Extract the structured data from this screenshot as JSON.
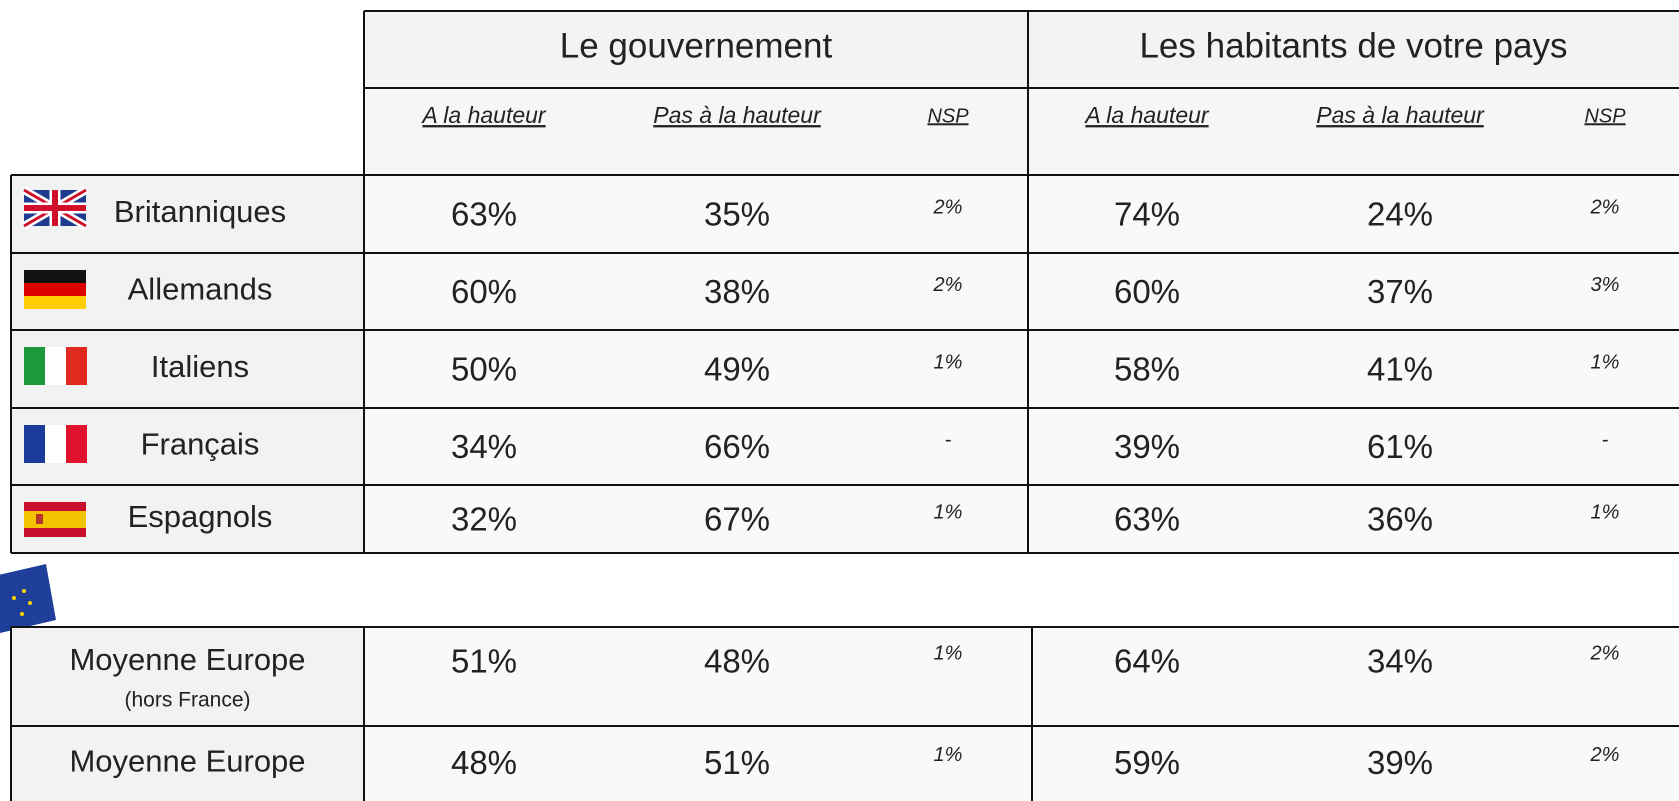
{
  "table": {
    "groups": [
      {
        "title": "Le gouvernement",
        "columns": [
          "A la hauteur",
          "Pas à la hauteur",
          "NSP"
        ]
      },
      {
        "title": "Les habitants de votre pays",
        "columns": [
          "A la hauteur",
          "Pas à la hauteur",
          "NSP"
        ]
      }
    ],
    "rows": [
      {
        "label": "Britanniques",
        "values": [
          "63%",
          "35%",
          "2%",
          "74%",
          "24%",
          "2%"
        ]
      },
      {
        "label": "Allemands",
        "values": [
          "60%",
          "38%",
          "2%",
          "60%",
          "37%",
          "3%"
        ]
      },
      {
        "label": "Italiens",
        "values": [
          "50%",
          "49%",
          "1%",
          "58%",
          "41%",
          "1%"
        ]
      },
      {
        "label": "Français",
        "values": [
          "34%",
          "66%",
          "-",
          "39%",
          "61%",
          "-"
        ]
      },
      {
        "label": "Espagnols",
        "values": [
          "32%",
          "67%",
          "1%",
          "63%",
          "36%",
          "1%"
        ]
      }
    ],
    "averages": [
      {
        "label": "Moyenne Europe",
        "note": "(hors France)",
        "values": [
          "51%",
          "48%",
          "1%",
          "64%",
          "34%",
          "2%"
        ]
      },
      {
        "label": "Moyenne Europe",
        "values": [
          "48%",
          "51%",
          "1%",
          "59%",
          "39%",
          "2%"
        ]
      }
    ]
  }
}
